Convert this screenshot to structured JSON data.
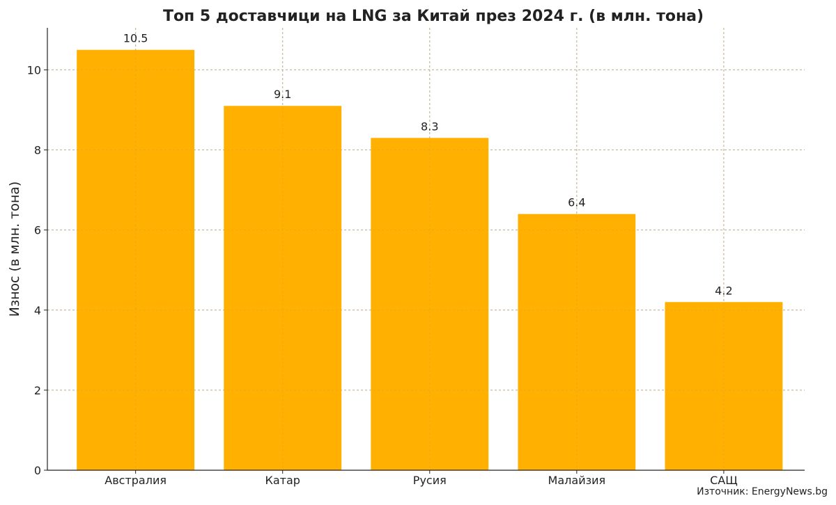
{
  "chart_data": {
    "type": "bar",
    "title": "Топ 5 доставчици на LNG за Китай през 2024 г. (в млн. тона)",
    "xlabel": "",
    "ylabel": "Износ (в млн. тона)",
    "categories": [
      "Австралия",
      "Катар",
      "Русия",
      "Малайзия",
      "САЩ"
    ],
    "values": [
      10.5,
      9.1,
      8.3,
      6.4,
      4.2
    ],
    "data_labels": [
      "10.5",
      "9.1",
      "8.3",
      "6.4",
      "4.2"
    ],
    "ylim": [
      0,
      11.05
    ],
    "yticks": [
      0,
      2,
      4,
      6,
      8,
      10
    ],
    "grid": true,
    "bar_color": "#ffb000",
    "source": "Източник: EnergyNews.bg"
  }
}
